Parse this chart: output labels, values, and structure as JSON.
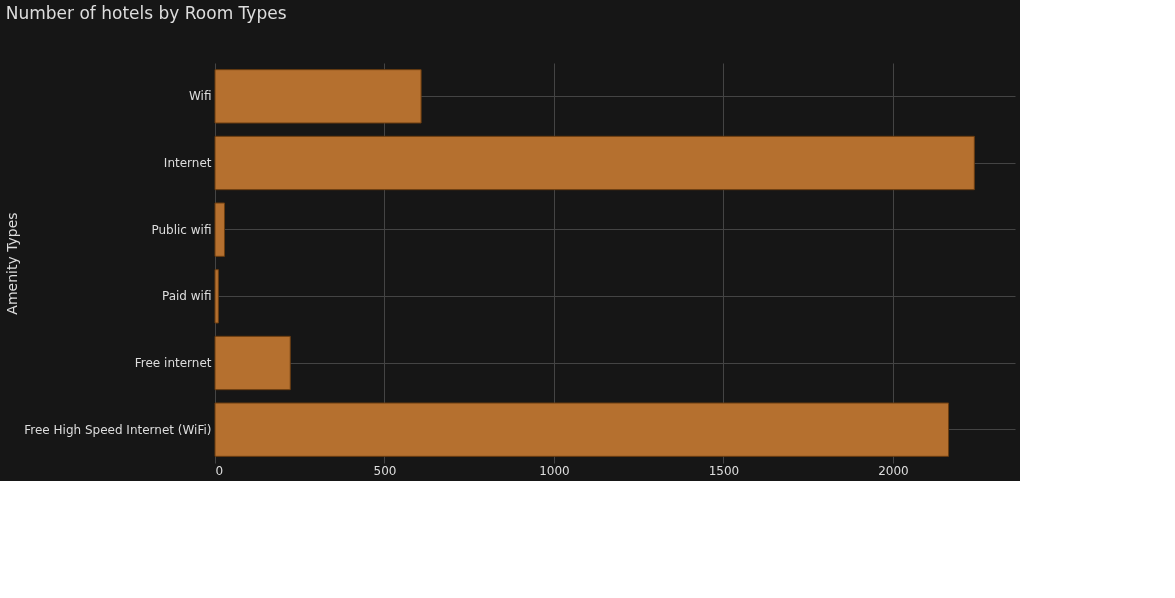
{
  "chart_data": {
    "type": "bar",
    "orientation": "horizontal",
    "title": "Number of hotels by Room Types",
    "ylabel": "Amenity Types",
    "categories": [
      "Wifi",
      "Internet",
      "Public wifi",
      "Paid wifi",
      "Free internet",
      "Free High Speed Internet (WiFi)"
    ],
    "values": [
      608,
      2240,
      28,
      10,
      222,
      2164
    ],
    "color": "#b5702f",
    "xlim": [
      0,
      2360
    ],
    "xticks": [
      0,
      500,
      1000,
      1500,
      2000
    ],
    "grid": true
  }
}
